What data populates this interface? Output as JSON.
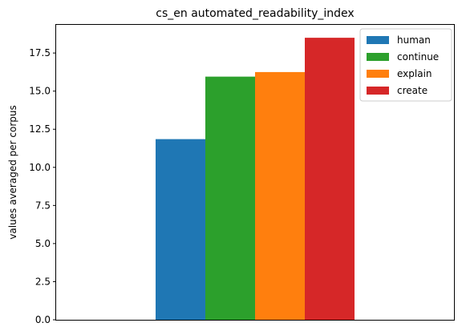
{
  "chart_data": {
    "type": "bar",
    "title": "cs_en automated_readability_index",
    "xlabel": "",
    "ylabel": "values averaged per corpus",
    "categories": [
      ""
    ],
    "series": [
      {
        "name": "human",
        "values": [
          11.85
        ],
        "color": "#1f77b4"
      },
      {
        "name": "continue",
        "values": [
          15.95
        ],
        "color": "#2ca02c"
      },
      {
        "name": "explain",
        "values": [
          16.25
        ],
        "color": "#ff7f0e"
      },
      {
        "name": "create",
        "values": [
          18.5
        ],
        "color": "#d62728"
      }
    ],
    "ylim": [
      0,
      19.4
    ],
    "yticks": [
      "0.0",
      "2.5",
      "5.0",
      "7.5",
      "10.0",
      "12.5",
      "15.0",
      "17.5"
    ],
    "grid": false,
    "legend_position": "top-right"
  }
}
